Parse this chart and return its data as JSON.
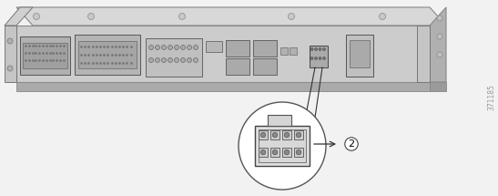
{
  "bg_color": "#f2f2f2",
  "device_top_color": "#d4d4d4",
  "device_front_color": "#c2c2c2",
  "device_right_color": "#b8b8b8",
  "device_side_color": "#adadad",
  "device_edge_color": "#888888",
  "connector_area_color": "#c8c8c8",
  "callout_circle_color": "white",
  "callout_edge_color": "#555555",
  "watermark": "371185",
  "watermark_color": "#999999",
  "pin_rows": 2,
  "pin_cols": 4,
  "label_fontsize": 8,
  "arrow_color": "#333333"
}
